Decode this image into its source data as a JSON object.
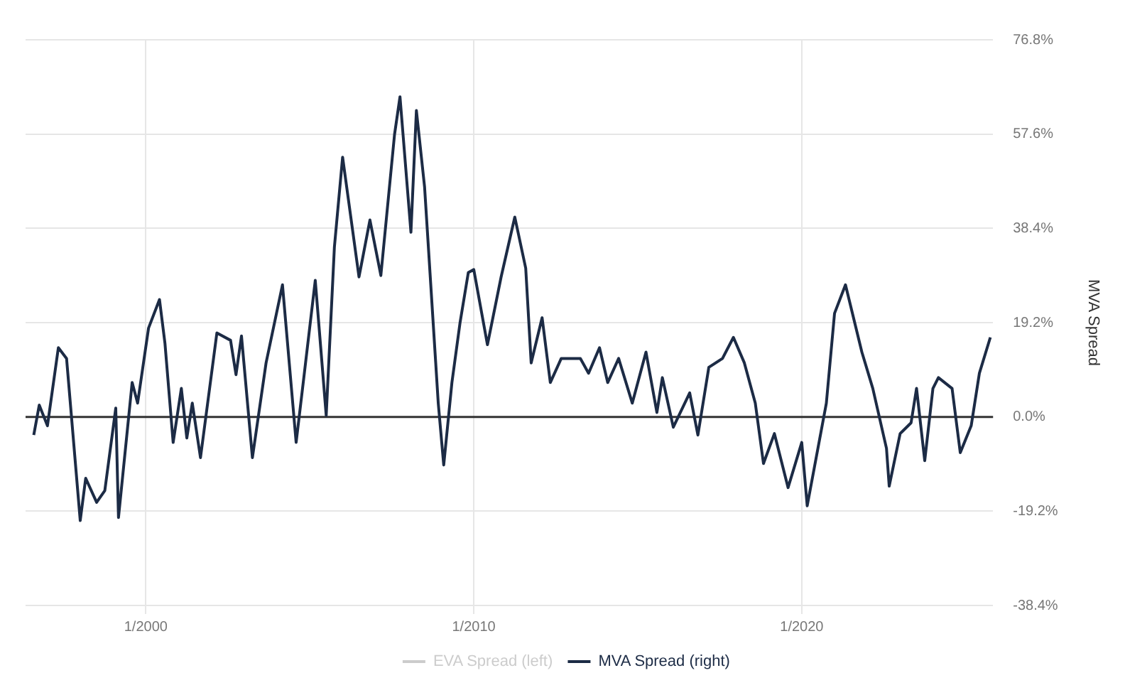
{
  "chart_data": {
    "type": "line",
    "y2label": "MVA Spread",
    "xlim": [
      "1996-05",
      "2025-11"
    ],
    "xticks": [
      {
        "value": "2000-01",
        "label": "1/2000"
      },
      {
        "value": "2010-01",
        "label": "1/2010"
      },
      {
        "value": "2020-01",
        "label": "1/2020"
      }
    ],
    "y2lim": [
      -38.4,
      76.8
    ],
    "y2ticks": [
      {
        "value": -38.4,
        "label": "-38.4%"
      },
      {
        "value": -19.2,
        "label": "-19.2%"
      },
      {
        "value": 0,
        "label": "0.0%"
      },
      {
        "value": 19.2,
        "label": "19.2%"
      },
      {
        "value": 38.4,
        "label": "38.4%"
      },
      {
        "value": 57.6,
        "label": "57.6%"
      },
      {
        "value": 76.8,
        "label": "76.8%"
      }
    ],
    "grid": true,
    "legend": "bottom",
    "marker": "none",
    "line_style": "solid",
    "ref_lines": [
      {
        "axis": "y2",
        "value": 0,
        "color": "#333333"
      }
    ],
    "series": [
      {
        "name": "EVA Spread (left)",
        "color": "#cccccc"
      },
      {
        "name": "MVA Spread (right)",
        "color": "#1c2b45",
        "axis": "y2",
        "x": [
          "1996-08",
          "1996-10",
          "1997-01",
          "1997-05",
          "1997-08",
          "1998-01",
          "1998-03",
          "1998-07",
          "1998-10",
          "1999-02",
          "1999-03",
          "1999-08",
          "1999-10",
          "2000-02",
          "2000-06",
          "2000-08",
          "2000-11",
          "2001-02",
          "2001-04",
          "2001-06",
          "2001-09",
          "2002-03",
          "2002-08",
          "2002-10",
          "2002-12",
          "2003-04",
          "2003-09",
          "2004-03",
          "2004-08",
          "2004-11",
          "2005-03",
          "2005-05",
          "2005-07",
          "2005-10",
          "2006-01",
          "2006-07",
          "2006-11",
          "2007-03",
          "2007-08",
          "2007-10",
          "2008-02",
          "2008-04",
          "2008-07",
          "2008-12",
          "2009-02",
          "2009-05",
          "2009-08",
          "2009-11",
          "2010-01",
          "2010-06",
          "2010-11",
          "2011-04",
          "2011-08",
          "2011-10",
          "2012-02",
          "2012-05",
          "2012-09",
          "2013-04",
          "2013-07",
          "2013-11",
          "2014-02",
          "2014-06",
          "2014-11",
          "2015-04",
          "2015-08",
          "2015-10",
          "2016-02",
          "2016-08",
          "2016-11",
          "2017-03",
          "2017-08",
          "2017-12",
          "2018-04",
          "2018-08",
          "2018-11",
          "2019-03",
          "2019-08",
          "2020-01",
          "2020-03",
          "2020-10",
          "2021-01",
          "2021-05",
          "2021-11",
          "2022-03",
          "2022-08",
          "2022-09",
          "2023-01",
          "2023-05",
          "2023-07",
          "2023-10",
          "2024-01",
          "2024-03",
          "2024-08",
          "2024-11",
          "2025-03",
          "2025-06",
          "2025-10"
        ],
        "values": [
          -3.7,
          2.4,
          -1.8,
          14.1,
          11.9,
          -21.1,
          -12.5,
          -17.4,
          -15.0,
          1.8,
          -20.5,
          7.0,
          2.8,
          18.1,
          23.9,
          15.0,
          -5.2,
          5.8,
          -4.3,
          2.8,
          -8.3,
          17.1,
          15.6,
          8.6,
          16.5,
          -8.3,
          11.0,
          26.9,
          -5.2,
          8.9,
          27.8,
          14.1,
          0.3,
          34.6,
          52.9,
          28.5,
          40.1,
          28.8,
          57.5,
          65.2,
          37.6,
          62.4,
          46.8,
          2.8,
          -9.8,
          7.0,
          19.3,
          29.4,
          30.0,
          14.7,
          28.5,
          40.7,
          30.3,
          11.0,
          20.2,
          7.0,
          11.9,
          11.9,
          8.9,
          14.1,
          7.0,
          11.9,
          2.8,
          13.2,
          0.9,
          8.0,
          -2.1,
          4.9,
          -3.7,
          10.1,
          11.9,
          16.2,
          11.0,
          2.8,
          -9.5,
          -3.4,
          -14.4,
          -5.2,
          -18.1,
          2.8,
          21.1,
          26.9,
          13.2,
          5.8,
          -6.4,
          -14.1,
          -3.4,
          -1.2,
          5.8,
          -8.9,
          5.8,
          8.0,
          5.8,
          -7.3,
          -1.8,
          8.9,
          16.2
        ]
      }
    ]
  }
}
